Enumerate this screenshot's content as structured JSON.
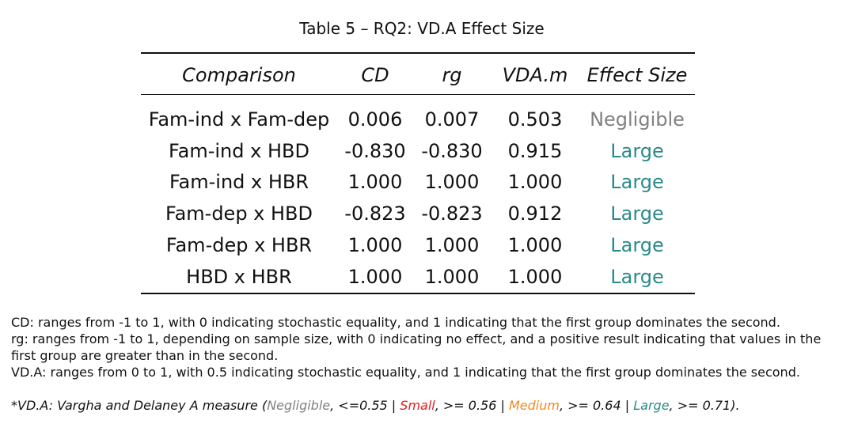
{
  "caption": "Table 5 – RQ2: VD.A Effect Size",
  "table": {
    "headers": [
      "Comparison",
      "CD",
      "rg",
      "VDA.m",
      "Effect Size"
    ],
    "rows": [
      [
        "Fam-ind x Fam-dep",
        "0.006",
        "0.007",
        "0.503",
        "Negligible"
      ],
      [
        "Fam-ind x HBD",
        "-0.830",
        "-0.830",
        "0.915",
        "Large"
      ],
      [
        "Fam-ind x HBR",
        "1.000",
        "1.000",
        "1.000",
        "Large"
      ],
      [
        "Fam-dep x HBD",
        "-0.823",
        "-0.823",
        "0.912",
        "Large"
      ],
      [
        "Fam-dep x HBR",
        "1.000",
        "1.000",
        "1.000",
        "Large"
      ],
      [
        "HBD x HBR",
        "1.000",
        "1.000",
        "1.000",
        "Large"
      ]
    ]
  },
  "notes": [
    "CD: ranges from -1 to 1, with 0 indicating stochastic equality, and 1 indicating that the first group dominates the second.",
    "rg: ranges from -1 to 1, depending on sample size, with 0 indicating no effect, and a positive result indicating that values in the first group are greater than in the second.",
    "VD.A: ranges from 0 to 1, with 0.5 indicating stochastic equality, and 1 indicating that the first group dominates the second."
  ],
  "footnote": {
    "prefix": "*VD.A: Vargha and Delaney A measure (",
    "negligible": "Negligible",
    "negligible_rule": ", <=0.55 | ",
    "small": "Small",
    "small_rule": ", >= 0.56 | ",
    "medium": "Medium",
    "medium_rule": ", >= 0.64 | ",
    "large": "Large",
    "large_rule": ", >= 0.71).",
    "colors": {
      "negligible": "#808080",
      "small": "#e32020",
      "medium": "#f28a1e",
      "large": "#2a8a8a"
    }
  }
}
